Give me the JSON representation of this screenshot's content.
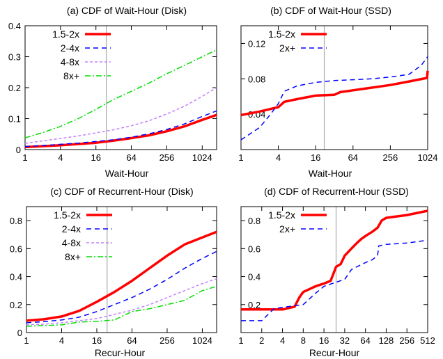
{
  "chart_data": [
    {
      "type": "line",
      "title": "(a) CDF of Wait-Hour (Disk)",
      "xlabel": "Wait-Hour",
      "ylabel": "",
      "xscale": "log2",
      "xlim": [
        1,
        1800
      ],
      "ylim": [
        0,
        0.4
      ],
      "xticks": [
        1,
        4,
        16,
        64,
        256,
        1024
      ],
      "xticklabels": [
        "1",
        "4",
        "16",
        "64",
        "256",
        "1024"
      ],
      "yticks": [
        0,
        0.1,
        0.2,
        0.3,
        0.4
      ],
      "yticklabels": [
        "0",
        "0.1",
        "0.2",
        "0.3",
        "0.4"
      ],
      "ytick_side": "left",
      "vline_x": 24,
      "legend": "top-left",
      "series": [
        {
          "name": "1.5-2x",
          "color": "#ff0000",
          "dash": "solid",
          "width": 3.5,
          "x": [
            1,
            2,
            4,
            8,
            16,
            32,
            64,
            128,
            256,
            512,
            1024,
            1800
          ],
          "y": [
            0.008,
            0.011,
            0.014,
            0.018,
            0.022,
            0.029,
            0.037,
            0.046,
            0.059,
            0.075,
            0.096,
            0.112
          ]
        },
        {
          "name": "2-4x",
          "color": "#0000ff",
          "dash": "7,5",
          "width": 1.5,
          "x": [
            1,
            2,
            4,
            8,
            16,
            32,
            64,
            128,
            256,
            512,
            1024,
            1800
          ],
          "y": [
            0.01,
            0.013,
            0.017,
            0.021,
            0.026,
            0.032,
            0.04,
            0.051,
            0.065,
            0.083,
            0.107,
            0.125
          ]
        },
        {
          "name": "4-8x",
          "color": "#c080ff",
          "dash": "4,3",
          "width": 1.5,
          "x": [
            1,
            2,
            4,
            8,
            16,
            32,
            64,
            128,
            256,
            512,
            1024,
            1800
          ],
          "y": [
            0.02,
            0.028,
            0.036,
            0.044,
            0.054,
            0.064,
            0.077,
            0.093,
            0.115,
            0.14,
            0.172,
            0.2
          ]
        },
        {
          "name": "8x+",
          "color": "#00dd00",
          "dash": "8,3,2,3",
          "width": 1.5,
          "x": [
            1,
            2,
            4,
            8,
            16,
            32,
            64,
            128,
            256,
            512,
            1024,
            1800
          ],
          "y": [
            0.038,
            0.055,
            0.075,
            0.1,
            0.13,
            0.162,
            0.188,
            0.215,
            0.245,
            0.272,
            0.3,
            0.322
          ]
        }
      ]
    },
    {
      "type": "line",
      "title": "(b) CDF of Wait-Hour (SSD)",
      "xlabel": "Wait-Hour",
      "ylabel": "",
      "xscale": "log2",
      "xlim": [
        1,
        1024
      ],
      "ylim": [
        0,
        0.14
      ],
      "xticks": [
        1,
        4,
        16,
        64,
        256,
        1024
      ],
      "xticklabels": [
        "1",
        "4",
        "16",
        "64",
        "256",
        "1024"
      ],
      "yticks": [
        0.04,
        0.08,
        0.12
      ],
      "yticklabels": [
        "0.04",
        "0.08",
        "0.12"
      ],
      "ytick_side": "right",
      "vline_x": 22,
      "legend": "top-left",
      "series": [
        {
          "name": "1.5-2x",
          "color": "#ff0000",
          "dash": "solid",
          "width": 3.5,
          "x": [
            1,
            2,
            4,
            5,
            8,
            16,
            32,
            40,
            64,
            128,
            256,
            512,
            1000,
            1024
          ],
          "y": [
            0.039,
            0.043,
            0.048,
            0.054,
            0.057,
            0.061,
            0.062,
            0.065,
            0.067,
            0.07,
            0.073,
            0.077,
            0.081,
            0.089
          ]
        },
        {
          "name": "2x+",
          "color": "#0000ff",
          "dash": "7,5",
          "width": 1.5,
          "x": [
            1,
            2,
            3,
            4,
            5,
            8,
            16,
            32,
            64,
            128,
            256,
            512,
            800,
            1024
          ],
          "y": [
            0.011,
            0.025,
            0.04,
            0.052,
            0.066,
            0.072,
            0.076,
            0.078,
            0.079,
            0.08,
            0.082,
            0.085,
            0.095,
            0.105
          ]
        }
      ]
    },
    {
      "type": "line",
      "title": "(c) CDF of Recurrent-Hour (Disk)",
      "xlabel": "Recur-Hour",
      "ylabel": "",
      "xscale": "log2",
      "xlim": [
        1,
        1800
      ],
      "ylim": [
        0,
        0.9
      ],
      "xticks": [
        1,
        4,
        16,
        64,
        256,
        1024
      ],
      "xticklabels": [
        "1",
        "4",
        "16",
        "64",
        "256",
        "1024"
      ],
      "yticks": [
        0,
        0.2,
        0.4,
        0.6,
        0.8
      ],
      "yticklabels": [
        "0",
        "0.2",
        "0.4",
        "0.6",
        "0.8"
      ],
      "ytick_side": "left",
      "vline_x": 24,
      "legend": "top-left",
      "series": [
        {
          "name": "1.5-2x",
          "color": "#ff0000",
          "dash": "solid",
          "width": 3.5,
          "x": [
            1,
            2,
            4,
            8,
            16,
            32,
            64,
            128,
            256,
            512,
            1024,
            1800
          ],
          "y": [
            0.085,
            0.095,
            0.115,
            0.155,
            0.22,
            0.29,
            0.37,
            0.46,
            0.55,
            0.63,
            0.68,
            0.72
          ]
        },
        {
          "name": "2-4x",
          "color": "#0000ff",
          "dash": "7,5",
          "width": 1.5,
          "x": [
            1,
            2,
            4,
            8,
            16,
            32,
            64,
            128,
            256,
            512,
            1024,
            1800
          ],
          "y": [
            0.07,
            0.078,
            0.09,
            0.11,
            0.15,
            0.2,
            0.25,
            0.31,
            0.38,
            0.46,
            0.53,
            0.58
          ]
        },
        {
          "name": "4-8x",
          "color": "#c080ff",
          "dash": "4,3",
          "width": 1.5,
          "x": [
            1,
            2,
            4,
            8,
            16,
            32,
            64,
            128,
            256,
            512,
            1024,
            1800
          ],
          "y": [
            0.055,
            0.06,
            0.07,
            0.085,
            0.1,
            0.13,
            0.16,
            0.2,
            0.25,
            0.3,
            0.35,
            0.385
          ]
        },
        {
          "name": "8x+",
          "color": "#00dd00",
          "dash": "8,3,2,3",
          "width": 1.5,
          "x": [
            1,
            2,
            4,
            8,
            16,
            32,
            64,
            128,
            256,
            512,
            1024,
            1800
          ],
          "y": [
            0.045,
            0.05,
            0.055,
            0.075,
            0.08,
            0.09,
            0.15,
            0.17,
            0.2,
            0.23,
            0.3,
            0.33
          ]
        }
      ]
    },
    {
      "type": "line",
      "title": "(d) CDF of Recurrent-Hour (SSD)",
      "xlabel": "Recur-Hour",
      "ylabel": "",
      "xscale": "log2",
      "xlim": [
        1,
        512
      ],
      "ylim": [
        0,
        0.9
      ],
      "xticks": [
        1,
        2,
        4,
        8,
        16,
        32,
        64,
        128,
        256,
        512
      ],
      "xticklabels": [
        "1",
        "2",
        "4",
        "8",
        "16",
        "32",
        "64",
        "128",
        "256",
        "512"
      ],
      "yticks": [
        0.2,
        0.4,
        0.6,
        0.8
      ],
      "yticklabels": [
        "0.2",
        "0.4",
        "0.6",
        "0.8"
      ],
      "ytick_side": "right",
      "vline_x": 24,
      "legend": "top-left",
      "series": [
        {
          "name": "1.5-2x",
          "color": "#ff0000",
          "dash": "solid",
          "width": 3.5,
          "x": [
            1,
            2,
            4,
            6,
            7,
            8,
            12,
            16,
            20,
            24,
            28,
            32,
            40,
            48,
            56,
            64,
            80,
            96,
            110,
            128,
            256,
            512
          ],
          "y": [
            0.165,
            0.165,
            0.165,
            0.185,
            0.25,
            0.29,
            0.33,
            0.35,
            0.37,
            0.47,
            0.49,
            0.55,
            0.6,
            0.64,
            0.67,
            0.69,
            0.72,
            0.75,
            0.8,
            0.82,
            0.84,
            0.87
          ]
        },
        {
          "name": "2x+",
          "color": "#0000ff",
          "dash": "7,5",
          "width": 1.5,
          "x": [
            1,
            2,
            3,
            4,
            8,
            12,
            16,
            24,
            32,
            40,
            48,
            64,
            80,
            96,
            100,
            128,
            256,
            512
          ],
          "y": [
            0.085,
            0.085,
            0.17,
            0.18,
            0.2,
            0.28,
            0.33,
            0.36,
            0.38,
            0.45,
            0.47,
            0.5,
            0.52,
            0.55,
            0.62,
            0.63,
            0.64,
            0.66
          ]
        }
      ]
    }
  ]
}
